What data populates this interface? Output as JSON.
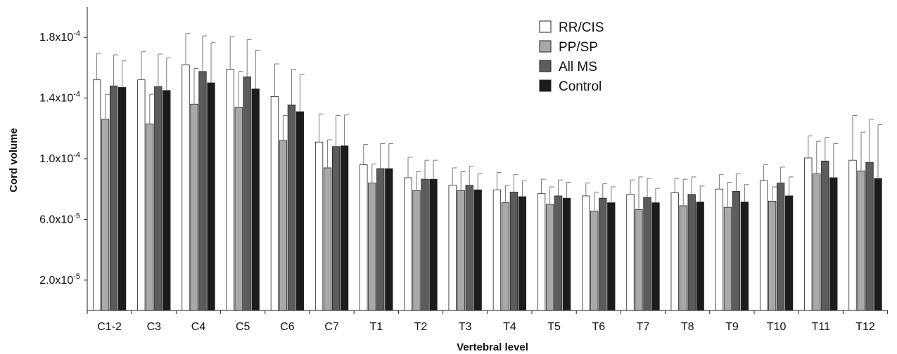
{
  "chart_data": {
    "type": "bar",
    "title": "",
    "xlabel": "Vertebral level",
    "ylabel": "Cord volume",
    "ylim": [
      0,
      0.0002
    ],
    "yticks": [
      {
        "value": 2e-05,
        "mantissa": "2.0x10",
        "exponent": "-5"
      },
      {
        "value": 6e-05,
        "mantissa": "6.0x10",
        "exponent": "-5"
      },
      {
        "value": 0.0001,
        "mantissa": "1.0x10",
        "exponent": "-4"
      },
      {
        "value": 0.00014,
        "mantissa": "1.4x10",
        "exponent": "-4"
      },
      {
        "value": 0.00018,
        "mantissa": "1.8x10",
        "exponent": "-4"
      }
    ],
    "grid": false,
    "legend_position": "top-center",
    "categories": [
      "C1-2",
      "C3",
      "C4",
      "C5",
      "C6",
      "C7",
      "T1",
      "T2",
      "T3",
      "T4",
      "T5",
      "T6",
      "T7",
      "T8",
      "T9",
      "T10",
      "T11",
      "T12"
    ],
    "series": [
      {
        "name": "RR/CIS",
        "color": "#ffffff",
        "values": [
          0.000152,
          0.000152,
          0.000162,
          0.000159,
          0.000141,
          0.000111,
          9.6e-05,
          8.75e-05,
          8.25e-05,
          7.95e-05,
          7.7e-05,
          7.55e-05,
          7.65e-05,
          7.75e-05,
          8e-05,
          8.55e-05,
          0.0001005,
          9.9e-05
        ],
        "errors": [
          1.75e-05,
          1.85e-05,
          2.05e-05,
          2.15e-05,
          2.15e-05,
          1.85e-05,
          1.35e-05,
          1.35e-05,
          1.15e-05,
          1.15e-05,
          9.5e-06,
          8.5e-06,
          9.5e-06,
          9.5e-06,
          9.5e-06,
          1.05e-05,
          1.45e-05,
          2.95e-05
        ]
      },
      {
        "name": "PP/SP",
        "color": "#a9a9a9",
        "values": [
          0.000126,
          0.000123,
          0.000136,
          0.000134,
          0.000112,
          9.4e-05,
          8.4e-05,
          7.9e-05,
          7.9e-05,
          7.1e-05,
          7e-05,
          6.55e-05,
          6.65e-05,
          6.9e-05,
          6.8e-05,
          7.2e-05,
          9e-05,
          9.2e-05
        ],
        "errors": [
          1.65e-05,
          1.95e-05,
          2.35e-05,
          2.35e-05,
          1.65e-05,
          1.85e-05,
          1.25e-05,
          1.25e-05,
          1.25e-05,
          1.15e-05,
          1.15e-05,
          1.25e-05,
          2.15e-05,
          1.75e-05,
          1.65e-05,
          9.5e-06,
          2.15e-05,
          2.55e-05
        ]
      },
      {
        "name": "All MS",
        "color": "#5c5c5c",
        "values": [
          0.000148,
          0.0001475,
          0.0001575,
          0.000154,
          0.0001355,
          0.000108,
          9.35e-05,
          8.65e-05,
          8.25e-05,
          7.8e-05,
          7.55e-05,
          7.4e-05,
          7.45e-05,
          7.65e-05,
          7.85e-05,
          8.4e-05,
          9.85e-05,
          9.75e-05
        ],
        "errors": [
          2.05e-05,
          2.15e-05,
          2.35e-05,
          2.45e-05,
          2.35e-05,
          2.05e-05,
          1.65e-05,
          1.25e-05,
          1.25e-05,
          1.15e-05,
          1.05e-05,
          9.5e-06,
          1.25e-05,
          1.15e-05,
          1.15e-05,
          1.05e-05,
          1.55e-05,
          2.85e-05
        ]
      },
      {
        "name": "Control",
        "color": "#1c1c1c",
        "values": [
          0.000147,
          0.000145,
          0.00015,
          0.000146,
          0.000131,
          0.0001085,
          9.35e-05,
          8.65e-05,
          7.95e-05,
          7.5e-05,
          7.4e-05,
          7.1e-05,
          7.1e-05,
          7.15e-05,
          7.15e-05,
          7.55e-05,
          8.75e-05,
          8.7e-05
        ],
        "errors": [
          1.75e-05,
          2.15e-05,
          2.65e-05,
          2.55e-05,
          2.45e-05,
          2.05e-05,
          1.65e-05,
          1.25e-05,
          1.05e-05,
          1.05e-05,
          1.05e-05,
          1.05e-05,
          9.5e-06,
          1.05e-05,
          1.15e-05,
          1.25e-05,
          2.25e-05,
          3.55e-05
        ]
      }
    ]
  }
}
